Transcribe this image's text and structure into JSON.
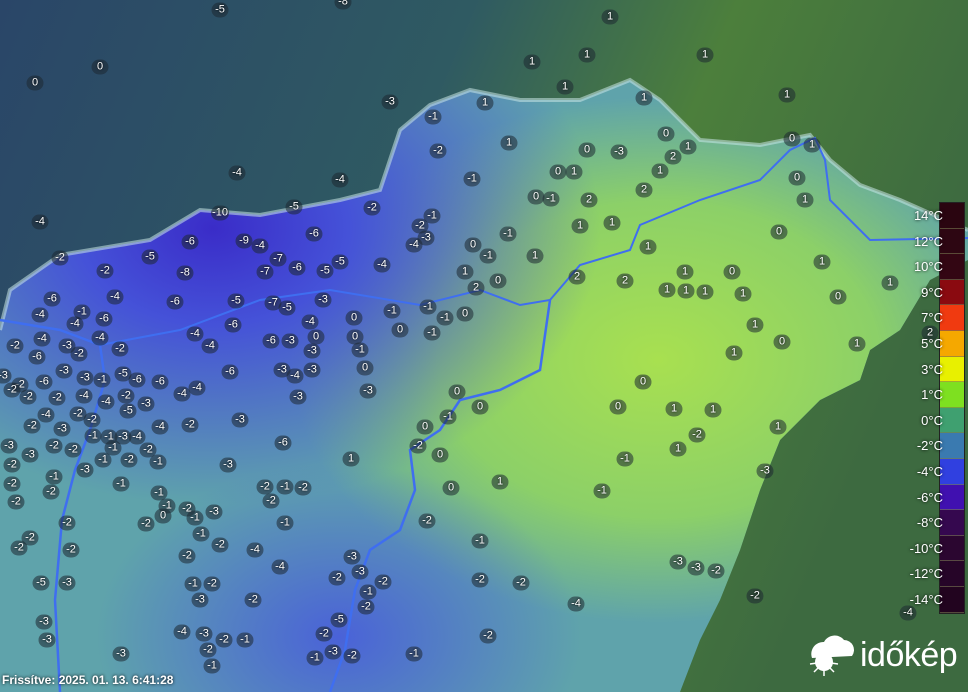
{
  "map": {
    "unit": "°C",
    "colors": {
      "cold": "#3a46d8",
      "cool": "#5fa3ab",
      "mild": "#9fdc58",
      "outside": "#2f5560",
      "river": "#3f6ef0"
    },
    "stations": [
      -5,
      -8,
      1,
      0,
      0,
      1,
      1,
      1,
      1,
      1,
      1,
      -3,
      1,
      -1,
      0,
      0,
      1,
      1,
      -2,
      1,
      0,
      -3,
      2,
      -4,
      -4,
      0,
      1,
      1,
      -1,
      0,
      0,
      -1,
      2,
      2,
      1,
      -4,
      -5,
      -2,
      -10,
      -1,
      -2,
      1,
      1,
      -1,
      0,
      -9,
      -6,
      -6,
      -3,
      -4,
      0,
      -1,
      -4,
      -2,
      -5,
      -7,
      -5,
      -4,
      1,
      1,
      1,
      -2,
      -8,
      -7,
      -6,
      -5,
      1,
      0,
      2,
      1,
      0,
      1,
      2,
      -4,
      -6,
      -6,
      -5,
      -7,
      -5,
      -3,
      2,
      1,
      1,
      1,
      1,
      0,
      -1,
      -4,
      -6,
      -4,
      -4,
      0,
      -1,
      -1,
      -1,
      0,
      0,
      -1,
      0,
      1,
      2,
      -2,
      -4,
      -3,
      -4,
      -4,
      -6,
      -6,
      -3,
      0,
      0,
      1,
      -6,
      -2,
      -2,
      -4,
      -3,
      -1,
      1,
      -3,
      -2,
      -2,
      -6,
      -3,
      -3,
      -1,
      -5,
      -6,
      -6,
      -6,
      -3,
      -4,
      -3,
      0,
      0,
      -2,
      -2,
      -4,
      -4,
      -2,
      -3,
      -4,
      -4,
      -3,
      -3,
      0,
      0,
      0,
      1,
      1,
      -4,
      -2,
      -2,
      -5,
      -1,
      -3,
      -2,
      -3,
      -4,
      -2,
      0,
      1,
      -1,
      -1,
      -3,
      -4,
      -3,
      -2,
      -2,
      -1,
      -2,
      -6,
      -2,
      -2,
      0,
      1,
      -3,
      -2,
      -1,
      -2,
      -3,
      -1,
      -3,
      1,
      -1,
      -3,
      -1,
      -2,
      -1,
      -2,
      -2,
      -1,
      -2,
      -1,
      -2,
      0,
      1,
      -1,
      -2,
      -1,
      -2,
      0,
      -1,
      -3,
      -1,
      -2,
      -2,
      -2,
      -1,
      -2,
      -2,
      -2,
      -2,
      -1,
      -2,
      -4,
      -3,
      -3,
      -4,
      -2,
      -2,
      -2,
      -2,
      -3,
      -3,
      -2,
      -1,
      -2,
      -5,
      -3,
      -3,
      -2,
      -1,
      -2,
      -4,
      -2,
      -3,
      -5,
      -4,
      -3,
      -2,
      -1,
      -2,
      -2,
      -4,
      -3,
      -3,
      -2,
      -2,
      -1,
      -3,
      -1,
      -1
    ]
  },
  "legend": {
    "labels": [
      "14°C",
      "12°C",
      "10°C",
      "9°C",
      "7°C",
      "5°C",
      "3°C",
      "1°C",
      "0°C",
      "-2°C",
      "-4°C",
      "-6°C",
      "-8°C",
      "-10°C",
      "-12°C",
      "-14°C"
    ],
    "colors": [
      "#2a0510",
      "#2d0612",
      "#330613",
      "#8a0a10",
      "#f03a10",
      "#f5a800",
      "#e8f000",
      "#7ee020",
      "#3fa070",
      "#3a7ab0",
      "#3040e0",
      "#4010b0",
      "#35084f",
      "#2b0630",
      "#260528",
      "#22041f"
    ]
  },
  "footer": {
    "updated": "Frissítve: 2025. 01. 13. 6:41:28"
  },
  "logo": {
    "text": "időkép"
  }
}
